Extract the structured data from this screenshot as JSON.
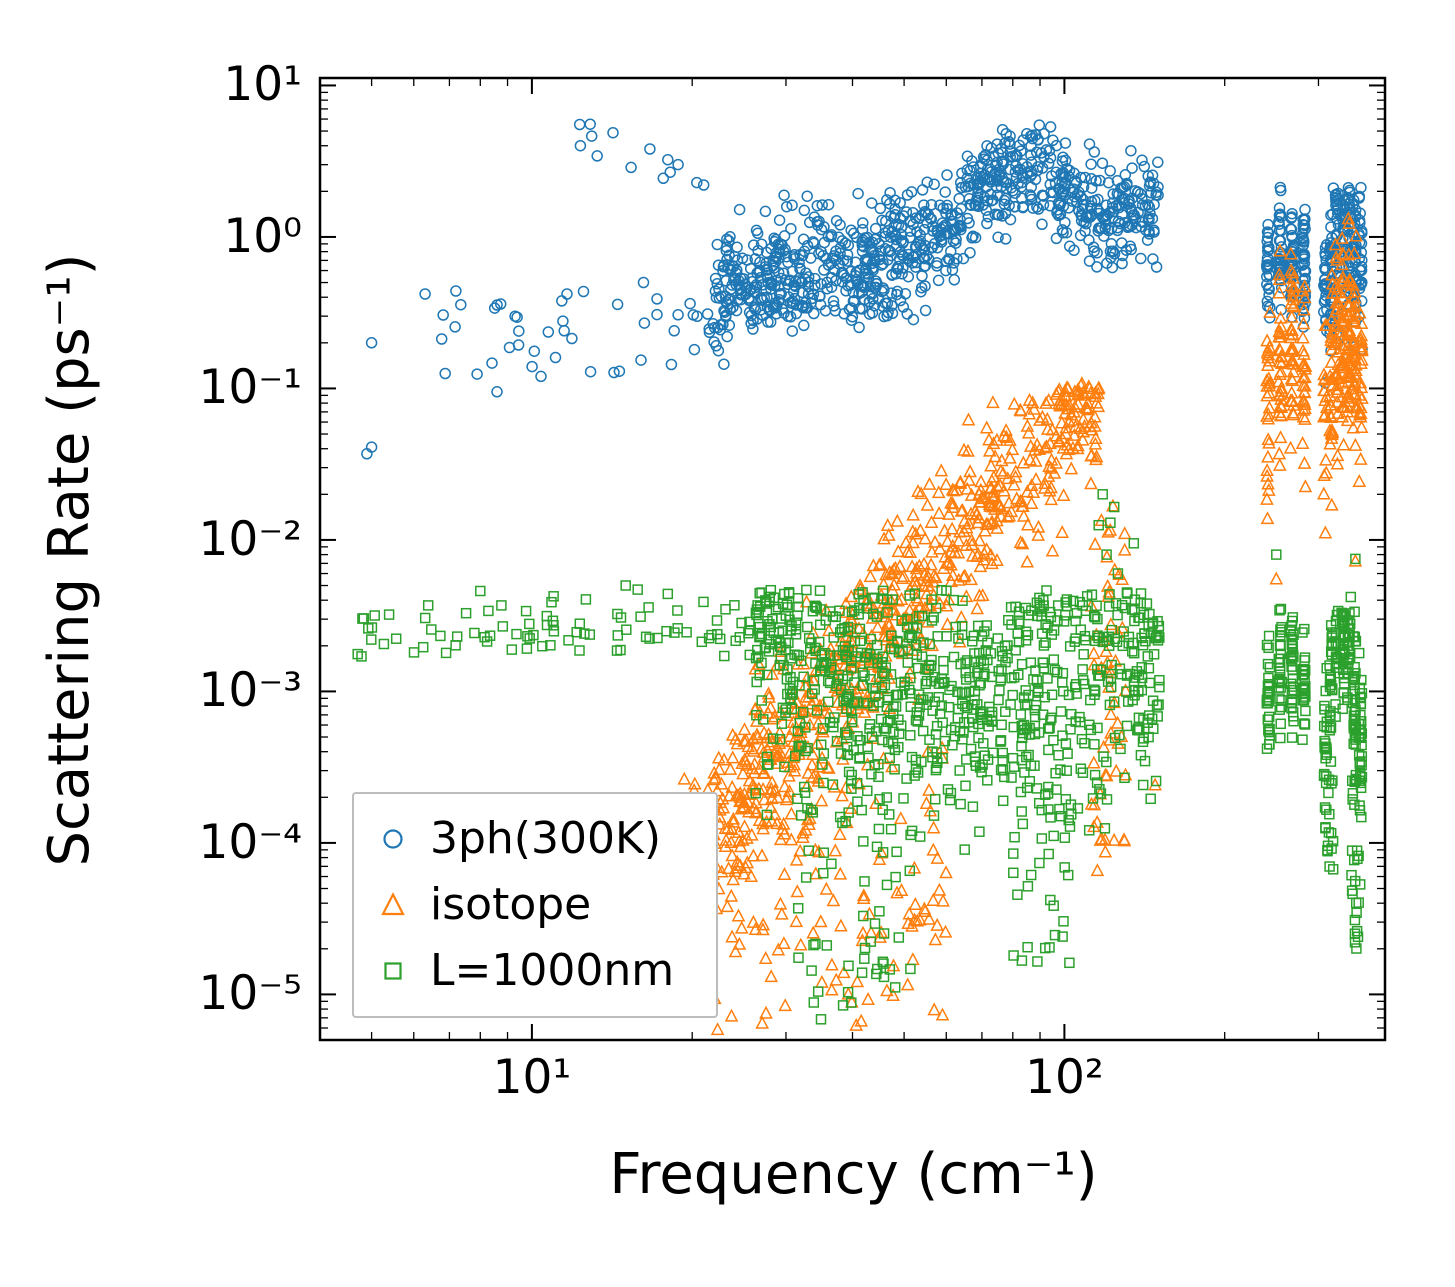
{
  "figure": {
    "background": "#ffffff",
    "axes_color": "#000000"
  },
  "chart_data": {
    "type": "scatter",
    "title": "",
    "xlabel": "Frequency (cm⁻¹)",
    "ylabel": "Scattering Rate (ps⁻¹)",
    "xscale": "log",
    "yscale": "log",
    "xlim": [
      4.0,
      400
    ],
    "ylim": [
      5e-06,
      11.2
    ],
    "grid": false,
    "legend_position": "lower left",
    "x_ticks": [
      {
        "value": 10,
        "label": "10¹"
      },
      {
        "value": 100,
        "label": "10²"
      }
    ],
    "y_ticks": [
      {
        "value": 1e-05,
        "label": "10⁻⁵"
      },
      {
        "value": 0.0001,
        "label": "10⁻⁴"
      },
      {
        "value": 0.001,
        "label": "10⁻³"
      },
      {
        "value": 0.01,
        "label": "10⁻²"
      },
      {
        "value": 0.1,
        "label": "10⁻¹"
      },
      {
        "value": 1,
        "label": "10⁰"
      },
      {
        "value": 10,
        "label": "10¹"
      }
    ],
    "series": [
      {
        "name": "3ph(300K)",
        "color": "#1f77b4",
        "marker": "circle",
        "clusters": [
          {
            "kind": "points",
            "values": [
              [
                5.0,
                0.2
              ],
              [
                4.9,
                0.037
              ],
              [
                5.0,
                0.041
              ],
              [
                6.3,
                0.42
              ],
              [
                7.2,
                0.44
              ],
              [
                8.6,
                0.095
              ],
              [
                9.3,
                0.3
              ],
              [
                10.4,
                0.12
              ],
              [
                11.5,
                0.24
              ],
              [
                14.6,
                0.13
              ],
              [
                16.2,
                0.5
              ],
              [
                18.5,
                0.24
              ],
              [
                320,
                2.1
              ],
              [
                255,
                1.35
              ]
            ]
          },
          {
            "kind": "box",
            "logx": [
              0.82,
              1.42
            ],
            "logy": [
              -0.92,
              -0.34
            ],
            "count": 40
          },
          {
            "kind": "curve",
            "logx": [
              1.07,
              1.58
            ],
            "count": 26,
            "spread": 0.05,
            "ctrl": [
              [
                1.07,
                0.72
              ],
              [
                1.2,
                0.52
              ],
              [
                1.35,
                0.34
              ],
              [
                1.48,
                0.2
              ],
              [
                1.58,
                0.1
              ]
            ]
          },
          {
            "kind": "box",
            "logx": [
              1.42,
              1.75
            ],
            "logy": [
              -0.55,
              -0.25
            ],
            "count": 55
          },
          {
            "kind": "curve",
            "logx": [
              1.34,
              2.18
            ],
            "count": 900,
            "spread": 0.17,
            "clampMax": 0.74,
            "ctrl": [
              [
                1.34,
                -0.38
              ],
              [
                1.5,
                -0.25
              ],
              [
                1.65,
                -0.12
              ],
              [
                1.78,
                0.02
              ],
              [
                1.86,
                0.33
              ],
              [
                1.92,
                0.48
              ],
              [
                1.97,
                0.38
              ],
              [
                2.03,
                0.22
              ],
              [
                2.1,
                0.12
              ],
              [
                2.18,
                0.22
              ]
            ]
          },
          {
            "kind": "curve",
            "logx": [
              2.383,
              2.45
            ],
            "count": 140,
            "spread": 0.18,
            "columns": 4,
            "ctrl": [
              [
                2.383,
                -0.25
              ],
              [
                2.41,
                -0.08
              ],
              [
                2.45,
                -0.2
              ]
            ]
          },
          {
            "kind": "curve",
            "logx": [
              2.49,
              2.556
            ],
            "count": 210,
            "spread": 0.26,
            "columns": 7,
            "clampMax": 0.33,
            "ctrl": [
              [
                2.49,
                -0.35
              ],
              [
                2.51,
                -0.08
              ],
              [
                2.53,
                0.05
              ],
              [
                2.556,
                -0.15
              ]
            ]
          }
        ]
      },
      {
        "name": "isotope",
        "color": "#ff7f0e",
        "marker": "triangle",
        "clusters": [
          {
            "kind": "curve",
            "logx": [
              1.25,
              2.065
            ],
            "count": 750,
            "spread": 0.28,
            "clampMax": -0.97,
            "ctrl": [
              [
                1.25,
                -4.3
              ],
              [
                1.4,
                -3.7
              ],
              [
                1.55,
                -3.05
              ],
              [
                1.7,
                -2.45
              ],
              [
                1.82,
                -1.95
              ],
              [
                1.9,
                -1.6
              ],
              [
                1.98,
                -1.35
              ],
              [
                2.03,
                -1.12
              ],
              [
                2.065,
                -1.25
              ]
            ]
          },
          {
            "kind": "box",
            "logx": [
              1.33,
              1.78
            ],
            "logy": [
              -5.25,
              -3.3
            ],
            "count": 160
          },
          {
            "kind": "box",
            "logx": [
              2.05,
              2.115
            ],
            "logy": [
              -4.2,
              -1.7
            ],
            "count": 55
          },
          {
            "kind": "points",
            "values": [
              [
                148,
                0.00024
              ],
              [
                128,
                0.0005
              ],
              [
                250,
                0.0055
              ],
              [
                352,
                0.0072
              ]
            ]
          },
          {
            "kind": "curve",
            "logx": [
              2.383,
              2.45
            ],
            "count": 130,
            "spread": 0.3,
            "columns": 4,
            "ctrl": [
              [
                2.383,
                -1.1
              ],
              [
                2.42,
                -0.75
              ],
              [
                2.45,
                -1.0
              ]
            ]
          },
          {
            "kind": "curve",
            "logx": [
              2.49,
              2.556
            ],
            "count": 210,
            "spread": 0.33,
            "columns": 7,
            "clampMax": 0.2,
            "ctrl": [
              [
                2.49,
                -1.2
              ],
              [
                2.52,
                -0.6
              ],
              [
                2.556,
                -0.9
              ]
            ]
          }
        ]
      },
      {
        "name": "L=1000nm",
        "color": "#2ca02c",
        "marker": "square",
        "clusters": [
          {
            "kind": "curve",
            "logx": [
              0.66,
              1.5
            ],
            "count": 95,
            "spread": 0.09,
            "ctrl": [
              [
                0.66,
                -2.61
              ],
              [
                1.0,
                -2.6
              ],
              [
                1.3,
                -2.57
              ],
              [
                1.5,
                -2.67
              ]
            ]
          },
          {
            "kind": "points",
            "values": [
              [
                8,
                0.0046
              ],
              [
                15,
                0.005
              ],
              [
                15.8,
                0.0047
              ],
              [
                18,
                0.0044
              ],
              [
                21,
                0.0039
              ],
              [
                24,
                0.0037
              ],
              [
                27.5,
                0.0038
              ],
              [
                29,
                0.0036
              ]
            ]
          },
          {
            "kind": "curve",
            "logx": [
              1.42,
              2.18
            ],
            "count": 800,
            "spread": 0.4,
            "clampMax": -2.33,
            "ctrl": [
              [
                1.42,
                -2.72
              ],
              [
                1.55,
                -2.95
              ],
              [
                1.7,
                -3.0
              ],
              [
                1.85,
                -3.05
              ],
              [
                1.95,
                -3.0
              ],
              [
                2.05,
                -2.95
              ],
              [
                2.18,
                -2.85
              ]
            ]
          },
          {
            "kind": "box",
            "logx": [
              1.5,
              1.72
            ],
            "logy": [
              -5.2,
              -3.7
            ],
            "count": 55
          },
          {
            "kind": "box",
            "logx": [
              1.9,
              2.02
            ],
            "logy": [
              -4.8,
              -3.6
            ],
            "count": 35
          },
          {
            "kind": "points",
            "values": [
              [
                116,
                0.0125
              ],
              [
                118,
                0.02
              ],
              [
                120,
                0.008
              ],
              [
                122,
                0.013
              ],
              [
                124,
                0.0165
              ],
              [
                126,
                0.006
              ],
              [
                131,
                0.0045
              ],
              [
                135,
                0.0095
              ],
              [
                141,
                0.0032
              ],
              [
                149,
                0.0023
              ]
            ]
          },
          {
            "kind": "curve",
            "logx": [
              2.383,
              2.45
            ],
            "count": 115,
            "spread": 0.2,
            "columns": 4,
            "ctrl": [
              [
                2.383,
                -3.1
              ],
              [
                2.41,
                -2.8
              ],
              [
                2.45,
                -3.0
              ]
            ]
          },
          {
            "kind": "curve",
            "logx": [
              2.49,
              2.556
            ],
            "count": 180,
            "spread": 0.24,
            "columns": 7,
            "clampMax": -2.45,
            "ctrl": [
              [
                2.49,
                -3.4
              ],
              [
                2.51,
                -2.75
              ],
              [
                2.53,
                -2.65
              ],
              [
                2.556,
                -3.3
              ]
            ]
          },
          {
            "kind": "box",
            "logx": [
              2.538,
              2.556
            ],
            "logy": [
              -4.7,
              -3.55
            ],
            "count": 28
          },
          {
            "kind": "box",
            "logx": [
              2.49,
              2.505
            ],
            "logy": [
              -4.2,
              -3.55
            ],
            "count": 16
          },
          {
            "kind": "points",
            "values": [
              [
                250,
                0.008
              ],
              [
                255,
                0.0035
              ],
              [
                345,
                0.0042
              ],
              [
                352,
                0.0075
              ]
            ]
          }
        ]
      }
    ]
  }
}
